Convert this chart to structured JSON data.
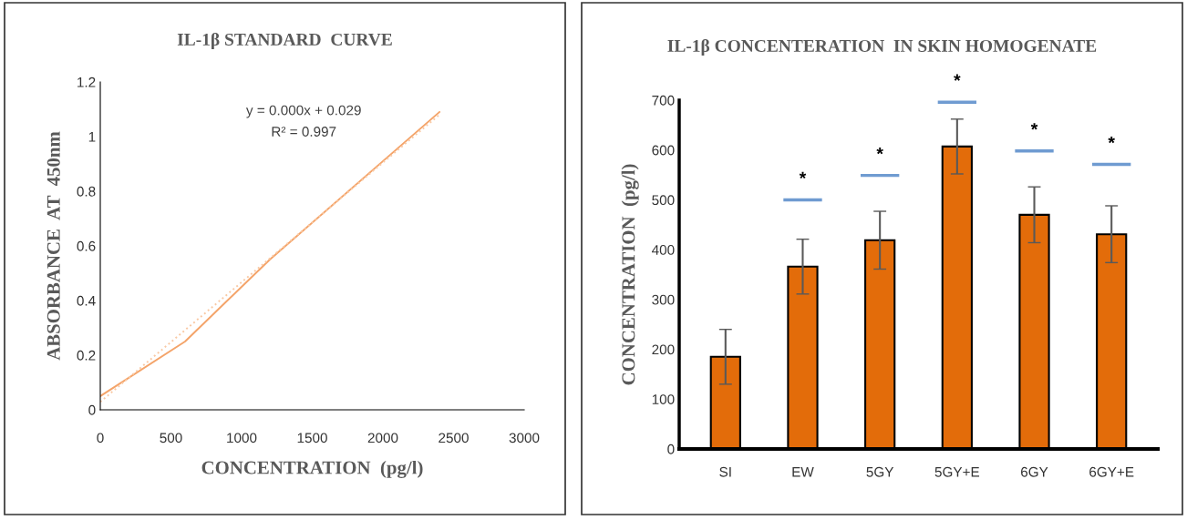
{
  "chart_data": [
    {
      "type": "line",
      "title": "IL-1β STANDARD  CURVE",
      "xlabel": "CONCENTRATION  (pg/l)",
      "ylabel": "ABSORBANCE  AT  450nm",
      "series": [
        {
          "x": [
            0,
            600,
            1200,
            2400
          ],
          "values": [
            0.05,
            0.25,
            0.55,
            1.09
          ],
          "color": "#f4a46a",
          "line_style": "solid"
        },
        {
          "type": "line",
          "x": [
            0,
            2400
          ],
          "values": [
            0.029,
            1.08
          ],
          "color": "#f9c9a4",
          "line_style": "dotted"
        }
      ],
      "annotations": [
        "y = 0.000x + 0.029",
        "R² = 0.997"
      ],
      "xlim": [
        0,
        3000
      ],
      "xticks": [
        0,
        500,
        1000,
        1500,
        2000,
        2500,
        3000
      ],
      "ylim": [
        0,
        1.2
      ],
      "yticks": [
        0,
        0.2,
        0.4,
        0.6,
        0.8,
        1,
        1.2
      ],
      "grid": false,
      "legend": false
    },
    {
      "type": "bar",
      "title": "IL-1β CONCENTERATION  IN SKIN HOMOGENATE",
      "ylabel": "CONCENTRATION  (pg/l)",
      "categories": [
        "SI",
        "EW",
        "5GY",
        "5GY+E",
        "6GY",
        "6GY+E"
      ],
      "series": [
        {
          "values": [
            185,
            366,
            419,
            607,
            470,
            431
          ],
          "color": "#e36c0a",
          "errors": [
            55,
            55,
            58,
            55,
            56,
            57
          ]
        },
        {
          "type": "bar",
          "base": [
            null,
            500,
            549,
            696,
            598,
            571
          ],
          "values": [
            null,
            0,
            0,
            0,
            0,
            0
          ],
          "color": "#6f9bd1"
        }
      ],
      "annotations": [
        "*",
        "*",
        "*",
        "*",
        "*"
      ],
      "ylim": [
        0,
        700
      ],
      "yticks": [
        0,
        100,
        200,
        300,
        400,
        500,
        600,
        700
      ],
      "grid": false,
      "legend": false
    }
  ]
}
